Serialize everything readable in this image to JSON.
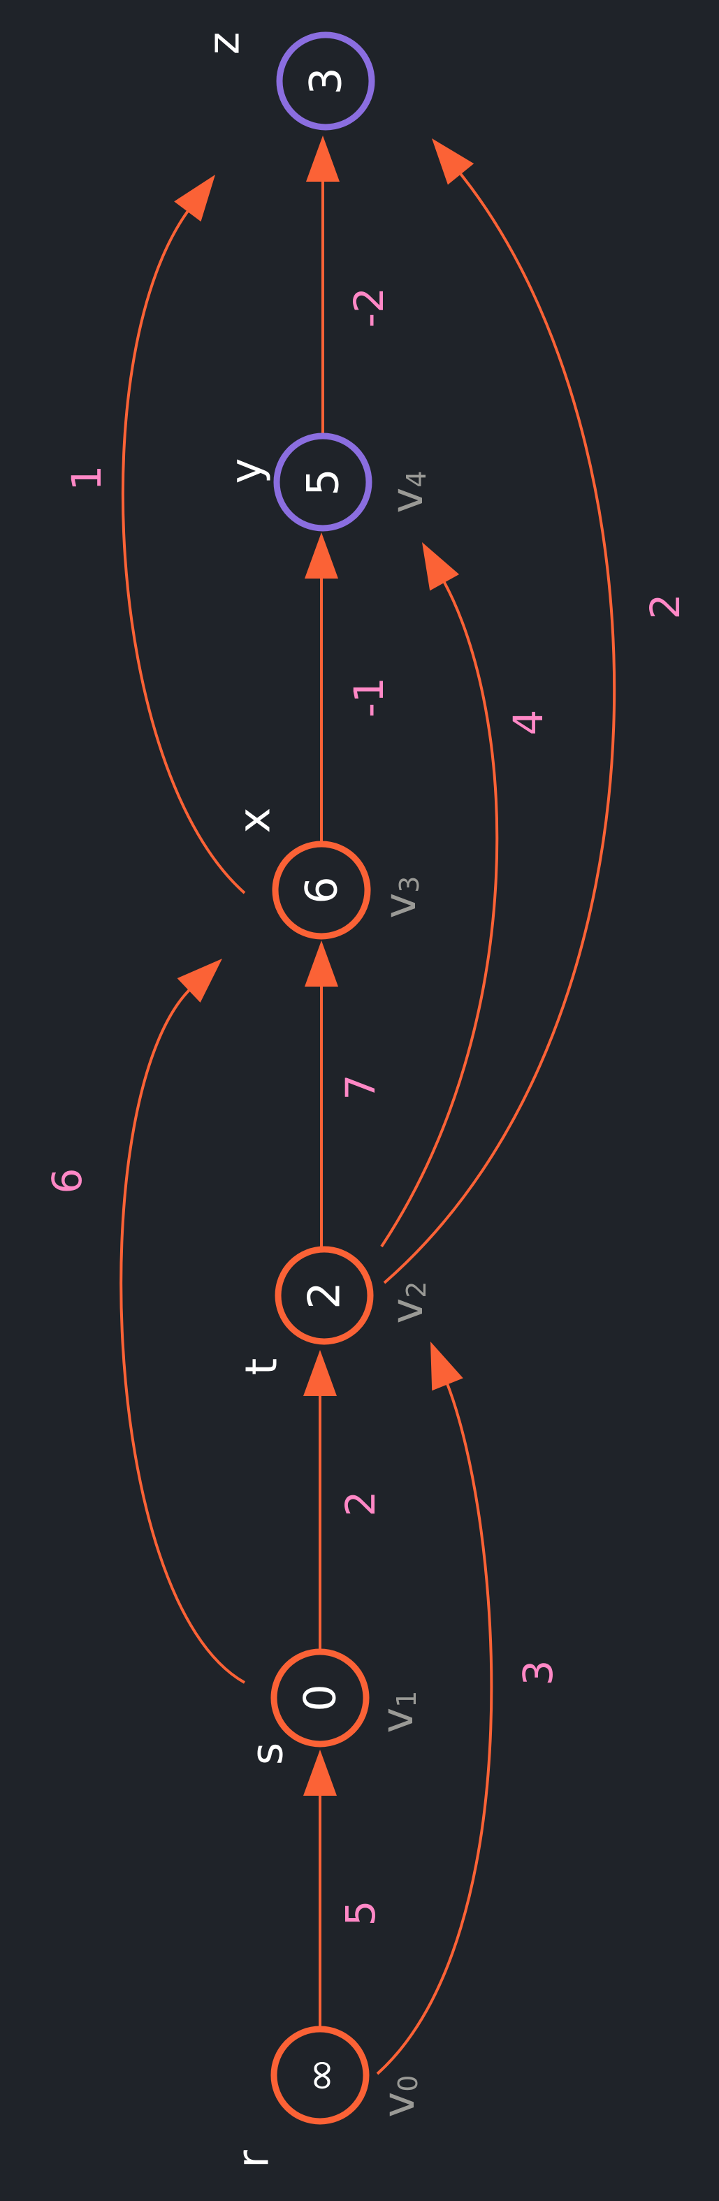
{
  "colors": {
    "background": "#1f2329",
    "visited": "#fb6236",
    "unvisited": "#8b6ee0",
    "edge": "#fb6236",
    "weight": "#ff88c6",
    "index_label": "#9a9a96"
  },
  "nodes": [
    {
      "id": "r",
      "name": "r",
      "value": "∞",
      "index": "v",
      "index_sub": "0",
      "state": "visited"
    },
    {
      "id": "s",
      "name": "s",
      "value": "0",
      "index": "v",
      "index_sub": "1",
      "state": "visited"
    },
    {
      "id": "t",
      "name": "t",
      "value": "2",
      "index": "v",
      "index_sub": "2",
      "state": "visited"
    },
    {
      "id": "x",
      "name": "x",
      "value": "6",
      "index": "v",
      "index_sub": "3",
      "state": "visited"
    },
    {
      "id": "y",
      "name": "y",
      "value": "5",
      "index": "v",
      "index_sub": "4",
      "state": "unvisited"
    },
    {
      "id": "z",
      "name": "z",
      "value": "3",
      "index": "",
      "index_sub": "",
      "state": "unvisited"
    }
  ],
  "edges": [
    {
      "from": "r",
      "to": "s",
      "weight": "5"
    },
    {
      "from": "s",
      "to": "t",
      "weight": "2"
    },
    {
      "from": "t",
      "to": "x",
      "weight": "7"
    },
    {
      "from": "x",
      "to": "y",
      "weight": "-1"
    },
    {
      "from": "y",
      "to": "z",
      "weight": "-2"
    },
    {
      "from": "r",
      "to": "t",
      "weight": "3"
    },
    {
      "from": "s",
      "to": "x",
      "weight": "6"
    },
    {
      "from": "x",
      "to": "z",
      "weight": "1"
    },
    {
      "from": "t",
      "to": "y",
      "weight": "4"
    },
    {
      "from": "t",
      "to": "z",
      "weight": "2"
    }
  ]
}
